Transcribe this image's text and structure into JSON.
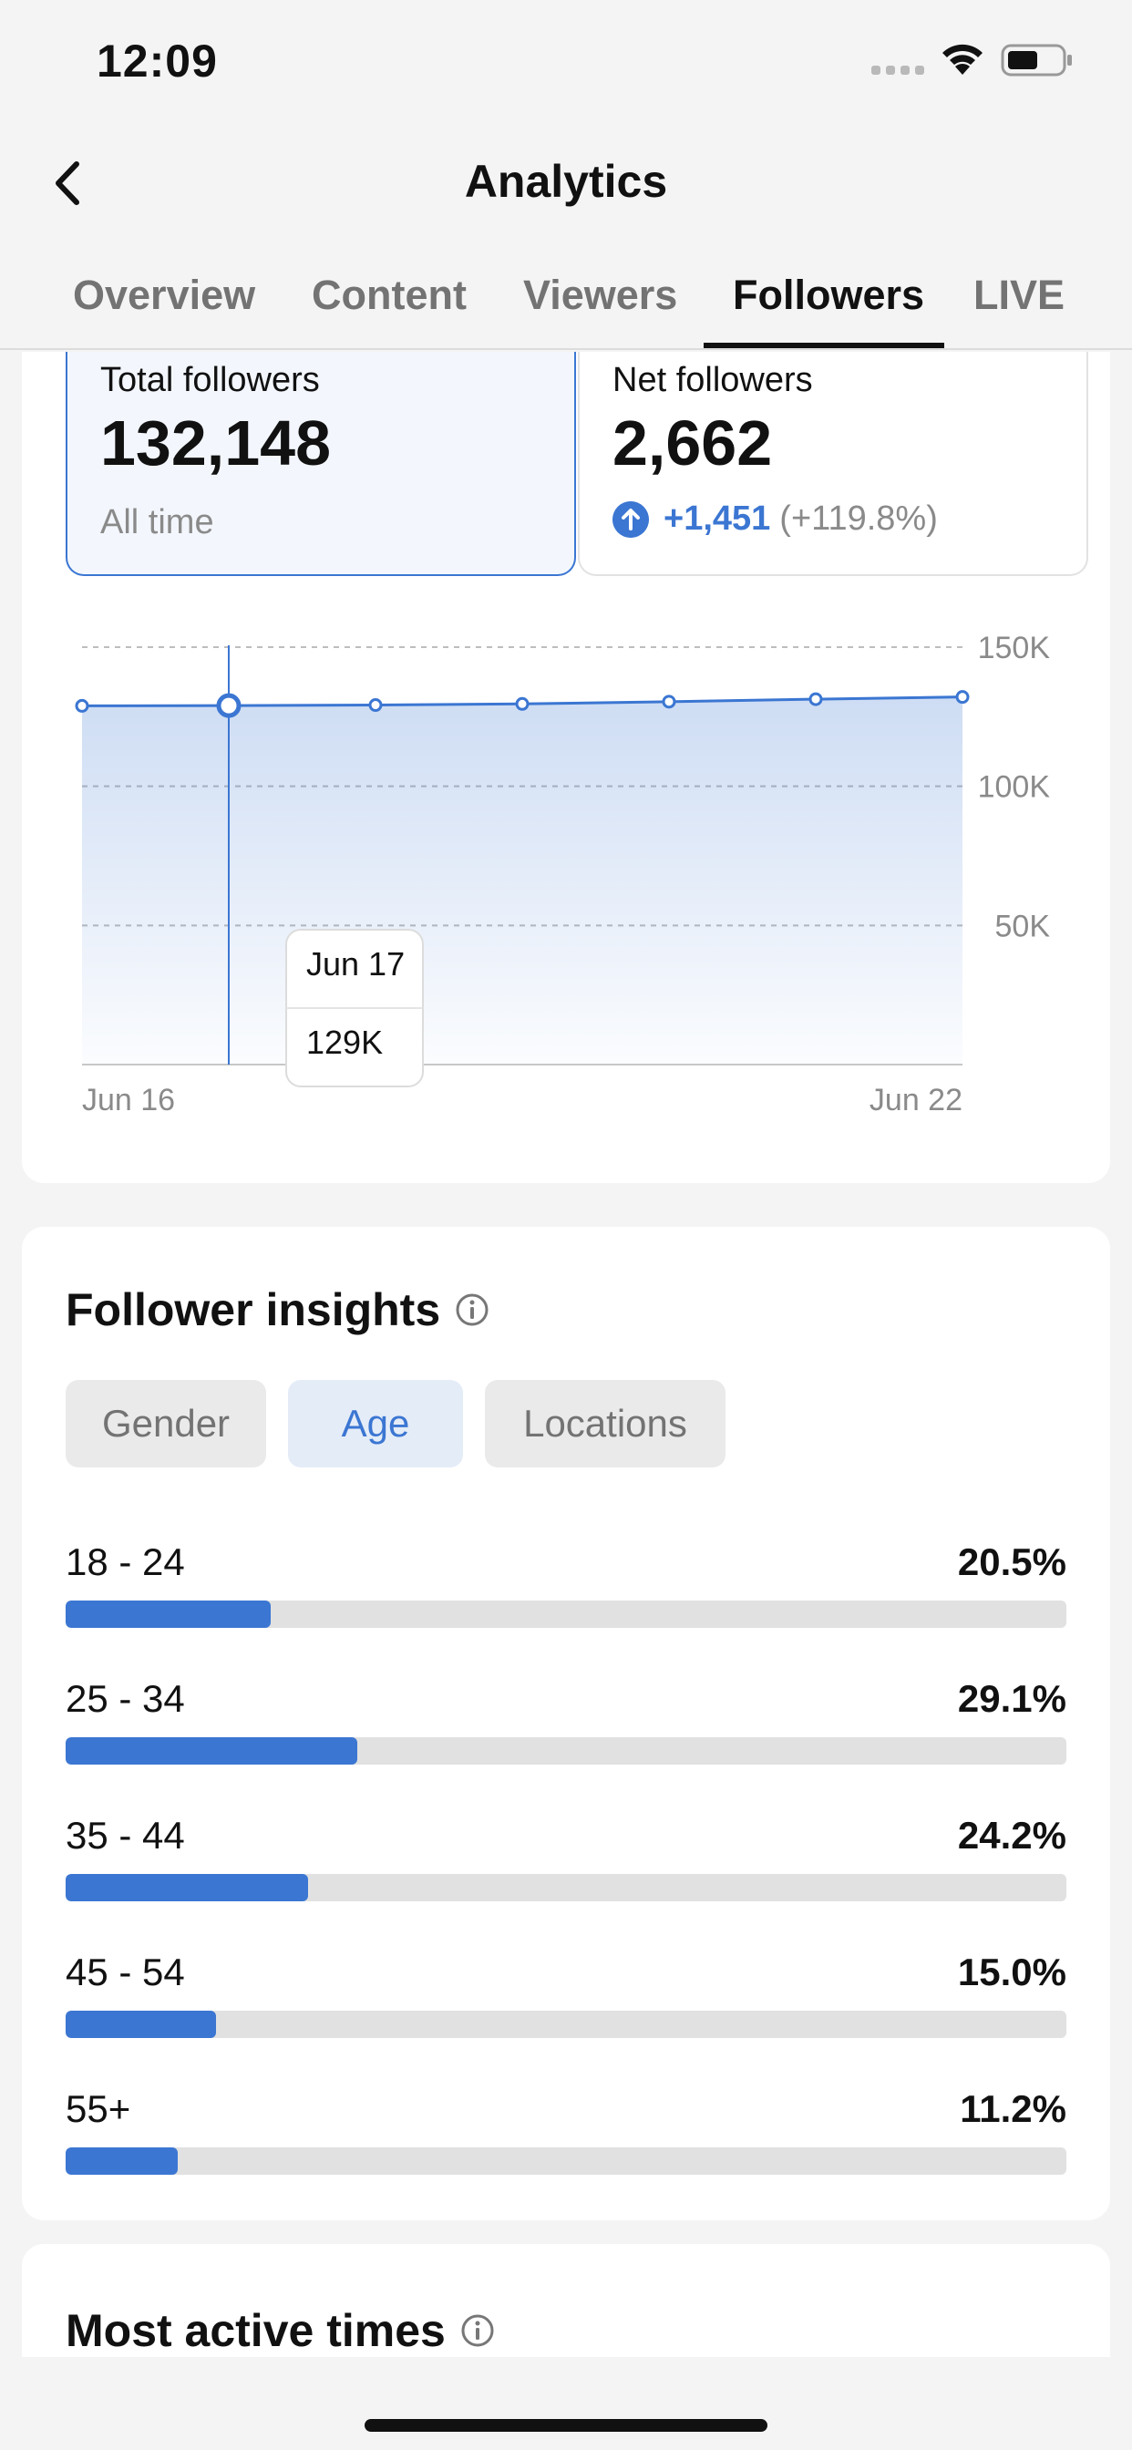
{
  "status": {
    "time": "12:09"
  },
  "header": {
    "title": "Analytics"
  },
  "tabs": [
    {
      "label": "Overview",
      "active": false
    },
    {
      "label": "Content",
      "active": false
    },
    {
      "label": "Viewers",
      "active": false
    },
    {
      "label": "Followers",
      "active": true
    },
    {
      "label": "LIVE",
      "active": false
    }
  ],
  "stats": {
    "total": {
      "label": "Total followers",
      "value": "132,148",
      "sub": "All time"
    },
    "net": {
      "label": "Net followers",
      "value": "2,662",
      "change": "+1,451",
      "change_pct": "(+119.8%)"
    }
  },
  "chart_data": {
    "type": "area",
    "x_labels": [
      "Jun 16",
      "Jun 22"
    ],
    "x": [
      "Jun 16",
      "Jun 17",
      "Jun 18",
      "Jun 19",
      "Jun 20",
      "Jun 21",
      "Jun 22"
    ],
    "values": [
      128.9,
      129,
      129.2,
      129.6,
      130.4,
      131.3,
      132.1
    ],
    "y_ticks": [
      "150K",
      "100K",
      "50K"
    ],
    "ylim": [
      0,
      150
    ],
    "tooltip": {
      "date": "Jun 17",
      "value": "129K"
    },
    "selected_index": 1,
    "accent": "#3b76d2"
  },
  "insights": {
    "title": "Follower insights",
    "pills": [
      {
        "label": "Gender",
        "active": false
      },
      {
        "label": "Age",
        "active": true
      },
      {
        "label": "Locations",
        "active": false
      }
    ],
    "age_groups": [
      {
        "label": "18 - 24",
        "pct": "20.5%",
        "value": 20.5
      },
      {
        "label": "25 - 34",
        "pct": "29.1%",
        "value": 29.1
      },
      {
        "label": "35 - 44",
        "pct": "24.2%",
        "value": 24.2
      },
      {
        "label": "45 - 54",
        "pct": "15.0%",
        "value": 15.0
      },
      {
        "label": "55+",
        "pct": "11.2%",
        "value": 11.2
      }
    ]
  },
  "active_times": {
    "title": "Most active times"
  },
  "colors": {
    "accent": "#3b76d2",
    "background": "#f4f4f4",
    "card": "#ffffff"
  }
}
